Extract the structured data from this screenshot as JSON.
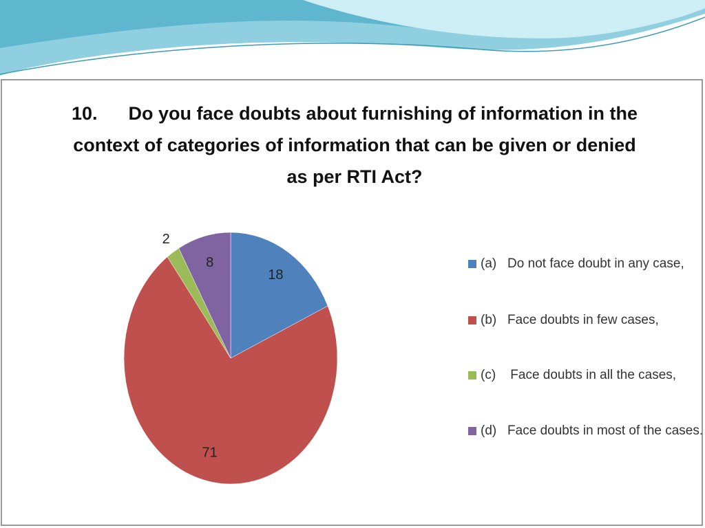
{
  "chart_data": {
    "type": "pie",
    "title": "10.      Do you face doubts about furnishing of information in the context of categories of information that can be given or denied as per RTI Act?",
    "categories": [
      "(a)   Do not face doubt in any case,",
      "(b)   Face doubts in few cases,",
      "(c)    Face doubts in all the cases,",
      "(d)   Face doubts in most of the cases."
    ],
    "values": [
      18,
      71,
      2,
      8
    ],
    "colors": [
      "#4f81bd",
      "#c0504d",
      "#9bbb59",
      "#8064a2"
    ],
    "legend": "right"
  }
}
